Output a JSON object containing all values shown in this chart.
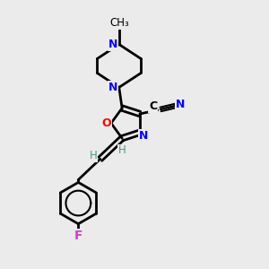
{
  "bg_color": "#ebebeb",
  "bond_color": "#000000",
  "nitrogen_color": "#0000ff",
  "oxygen_color": "#ff0000",
  "fluorine_color": "#cc44cc",
  "vinyl_h_color": "#4a9a8a",
  "line_width": 2.0,
  "figsize": [
    3.0,
    3.0
  ],
  "dpi": 100,
  "xlim": [
    -2.5,
    2.5
  ],
  "ylim": [
    -3.5,
    3.5
  ]
}
